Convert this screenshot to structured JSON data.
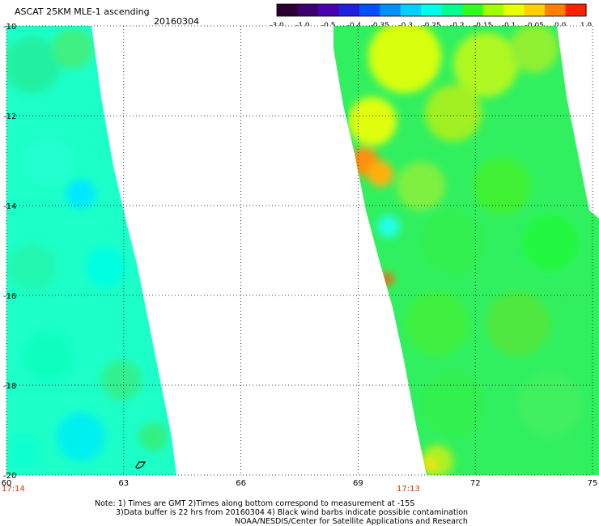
{
  "header": {
    "title": "ASCAT 25KM MLE-1 ascending",
    "date": "20160304"
  },
  "colorbar": {
    "ticks": [
      "-3.0",
      "-1.0",
      "-0.5",
      "-0.4",
      "-0.35",
      "-0.3",
      "-0.25",
      "-0.2",
      "-0.15",
      "-0.1",
      "-0.05",
      "0.0",
      "1.0"
    ],
    "colors": [
      "#2a0030",
      "#3c0070",
      "#4a00b0",
      "#2020e0",
      "#0050ff",
      "#0090ff",
      "#00d0ff",
      "#00ffe8",
      "#00ff90",
      "#30ff20",
      "#a0ff00",
      "#e8ff00",
      "#ffd000",
      "#ff8000",
      "#ff2000"
    ]
  },
  "map": {
    "lon_ticks": [
      "60",
      "63",
      "66",
      "69",
      "72",
      "75"
    ],
    "lat_ticks": [
      "-10",
      "-12",
      "-14",
      "-16",
      "-18",
      "-20"
    ],
    "lon_range": [
      60,
      75
    ],
    "lat_range": [
      -10,
      -20
    ],
    "swath_times": [
      "17:14",
      "17:13"
    ]
  },
  "notes": {
    "line1": "Note: 1) Times are GMT 2)Times along bottom correspond to measurement at -15S",
    "line2": "3)Data buffer is 22 hrs from 20160304 4) Black wind barbs indicate possible contamination",
    "line3": "NOAA/NESDIS/Center for Satellite Applications and Research"
  },
  "chart_data": {
    "type": "heatmap",
    "title": "ASCAT 25KM MLE-1 ascending",
    "date": "20160304",
    "x_axis": {
      "label": "",
      "range": [
        60,
        75
      ],
      "ticks": [
        60,
        63,
        66,
        69,
        72,
        75
      ]
    },
    "y_axis": {
      "label": "",
      "range": [
        -20,
        -10
      ],
      "ticks": [
        -10,
        -12,
        -14,
        -16,
        -18,
        -20
      ]
    },
    "colorscale_ticks": [
      -3.0,
      -1.0,
      -0.5,
      -0.4,
      -0.35,
      -0.3,
      -0.25,
      -0.2,
      -0.15,
      -0.1,
      -0.05,
      0.0,
      1.0
    ],
    "swaths": [
      {
        "time": "17:14",
        "lon_span_at_top": [
          60.0,
          62.3
        ],
        "lon_span_at_bottom": [
          60.0,
          64.4
        ],
        "dominant_range": [
          -0.3,
          -0.2
        ]
      },
      {
        "time": "17:13",
        "lon_span_at_top": [
          68.5,
          75.0
        ],
        "lon_span_at_bottom": [
          70.8,
          75.0
        ],
        "dominant_range": [
          -0.2,
          -0.05
        ]
      }
    ],
    "grid": true
  }
}
